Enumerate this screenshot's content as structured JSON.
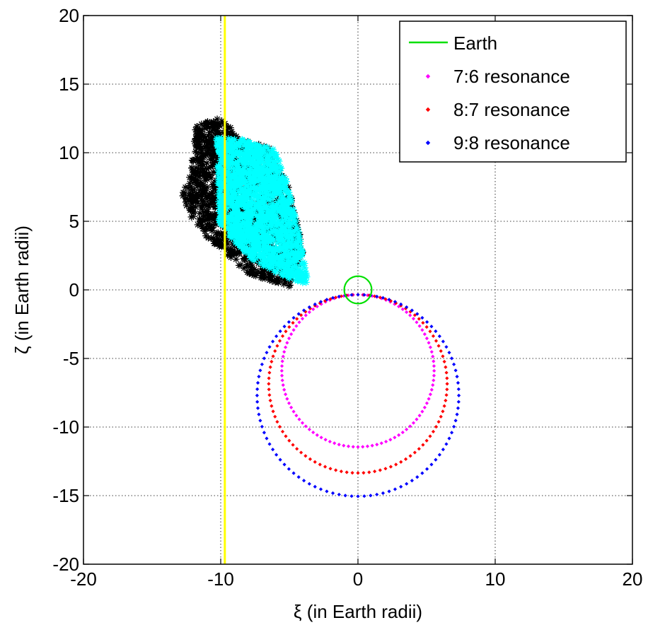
{
  "chart_data": {
    "type": "scatter",
    "xlabel": "ξ (in Earth radii)",
    "ylabel": "ζ (in Earth radii)",
    "xlim": [
      -20,
      20
    ],
    "ylim": [
      -20,
      20
    ],
    "xticks": [
      -20,
      -10,
      0,
      10,
      20
    ],
    "yticks": [
      -20,
      -15,
      -10,
      -5,
      0,
      5,
      10,
      15,
      20
    ],
    "xtick_labels": [
      "-20",
      "-10",
      "0",
      "10",
      "20"
    ],
    "ytick_labels": [
      "-20",
      "-15",
      "-10",
      "-5",
      "0",
      "5",
      "10",
      "15",
      "20"
    ],
    "grid": true,
    "grid_style": "dotted",
    "legend_position": "top-right",
    "colors": {
      "earth": "#00e000",
      "r76": "#ff00ff",
      "r87": "#ff0000",
      "r98": "#0000ff",
      "black_cloud": "#000000",
      "cyan_cloud": "#00ffff",
      "vertical_line": "#ffff00"
    },
    "earth": {
      "name": "Earth",
      "center": [
        0,
        0
      ],
      "radius": 1
    },
    "resonances": [
      {
        "name": "7:6 resonance",
        "center": [
          0,
          -5.9
        ],
        "radius": 5.55,
        "points": 100
      },
      {
        "name": "8:7 resonance",
        "center": [
          0,
          -6.85
        ],
        "radius": 6.5,
        "points": 100
      },
      {
        "name": "9:8 resonance",
        "center": [
          0,
          -7.7
        ],
        "radius": 7.35,
        "points": 100
      }
    ],
    "vertical_line": {
      "x": -9.7
    },
    "clouds": [
      {
        "marker": "*",
        "color": "black",
        "polygon": [
          [
            -12.2,
            8.5
          ],
          [
            -11.8,
            12.0
          ],
          [
            -10.2,
            12.6
          ],
          [
            -8.5,
            11.2
          ],
          [
            -6.5,
            10.4
          ],
          [
            -4.8,
            7.0
          ],
          [
            -4.0,
            2.8
          ],
          [
            -5.0,
            0.2
          ],
          [
            -8.0,
            1.2
          ],
          [
            -10.5,
            3.2
          ],
          [
            -12.3,
            5.5
          ],
          [
            -12.8,
            7.0
          ]
        ]
      },
      {
        "marker": "*",
        "color": "cyan",
        "polygon": [
          [
            -10.3,
            11.2
          ],
          [
            -8.5,
            11.0
          ],
          [
            -6.0,
            10.2
          ],
          [
            -5.2,
            8.0
          ],
          [
            -4.3,
            4.2
          ],
          [
            -3.6,
            0.4
          ],
          [
            -5.5,
            1.0
          ],
          [
            -8.0,
            2.4
          ],
          [
            -10.1,
            4.8
          ],
          [
            -10.2,
            8.0
          ]
        ]
      }
    ]
  }
}
